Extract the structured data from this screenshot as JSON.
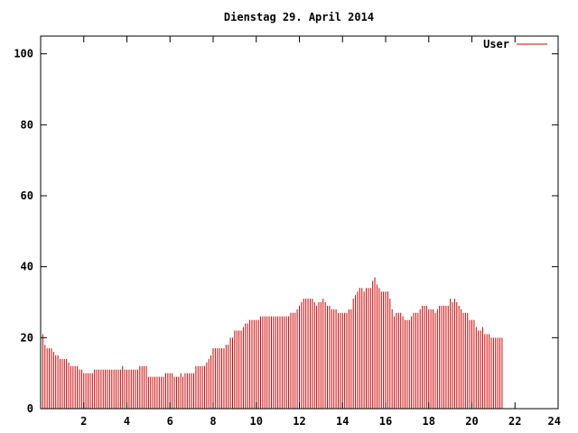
{
  "chart_data": {
    "type": "bar",
    "title": "Dienstag 29. April 2014",
    "xlabel": "",
    "ylabel": "",
    "xlim": [
      0,
      24
    ],
    "ylim": [
      0,
      105
    ],
    "x_ticks": [
      2,
      4,
      6,
      8,
      10,
      12,
      14,
      16,
      18,
      20,
      22,
      24
    ],
    "x_tick_labels": [
      "2",
      "4",
      "6",
      "8",
      "10",
      "12",
      "14",
      "16",
      "18",
      "20",
      "22",
      "24"
    ],
    "y_ticks": [
      0,
      20,
      40,
      60,
      80,
      100
    ],
    "y_tick_labels": [
      "0",
      "20",
      "40",
      "60",
      "80",
      "100"
    ],
    "grid": false,
    "legend_position": "top-right",
    "series": [
      {
        "name": "User",
        "color": "#cc0000",
        "x_start": 0,
        "x_step": 0.1,
        "values": [
          21,
          21,
          18,
          17,
          17,
          17,
          16,
          15,
          15,
          14,
          14,
          14,
          14,
          13,
          12,
          12,
          12,
          12,
          11,
          11,
          10,
          10,
          10,
          10,
          10,
          11,
          11,
          11,
          11,
          11,
          11,
          11,
          11,
          11,
          11,
          11,
          11,
          11,
          12,
          11,
          11,
          11,
          11,
          11,
          11,
          11,
          12,
          12,
          12,
          12,
          9,
          9,
          9,
          9,
          9,
          9,
          9,
          9,
          10,
          10,
          10,
          10,
          9,
          9,
          9,
          10,
          9,
          10,
          10,
          10,
          10,
          10,
          12,
          12,
          12,
          12,
          12,
          13,
          14,
          15,
          17,
          17,
          17,
          17,
          17,
          17,
          18,
          18,
          20,
          20,
          22,
          22,
          22,
          22,
          23,
          24,
          24,
          25,
          25,
          25,
          25,
          25,
          26,
          26,
          26,
          26,
          26,
          26,
          26,
          26,
          26,
          26,
          26,
          26,
          26,
          26,
          27,
          27,
          27,
          28,
          29,
          30,
          31,
          31,
          31,
          31,
          31,
          30,
          29,
          30,
          30,
          31,
          30,
          29,
          29,
          28,
          28,
          28,
          27,
          27,
          27,
          27,
          27,
          28,
          28,
          31,
          32,
          33,
          34,
          34,
          33,
          34,
          34,
          34,
          36,
          37,
          35,
          34,
          33,
          33,
          33,
          33,
          31,
          28,
          26,
          27,
          27,
          27,
          26,
          25,
          25,
          25,
          26,
          27,
          27,
          27,
          28,
          29,
          29,
          29,
          28,
          28,
          28,
          27,
          28,
          29,
          29,
          29,
          29,
          29,
          31,
          30,
          31,
          30,
          29,
          28,
          27,
          27,
          27,
          25,
          25,
          25,
          23,
          22,
          22,
          23,
          21,
          21,
          21,
          20,
          20,
          20,
          20,
          20,
          20
        ]
      }
    ]
  }
}
